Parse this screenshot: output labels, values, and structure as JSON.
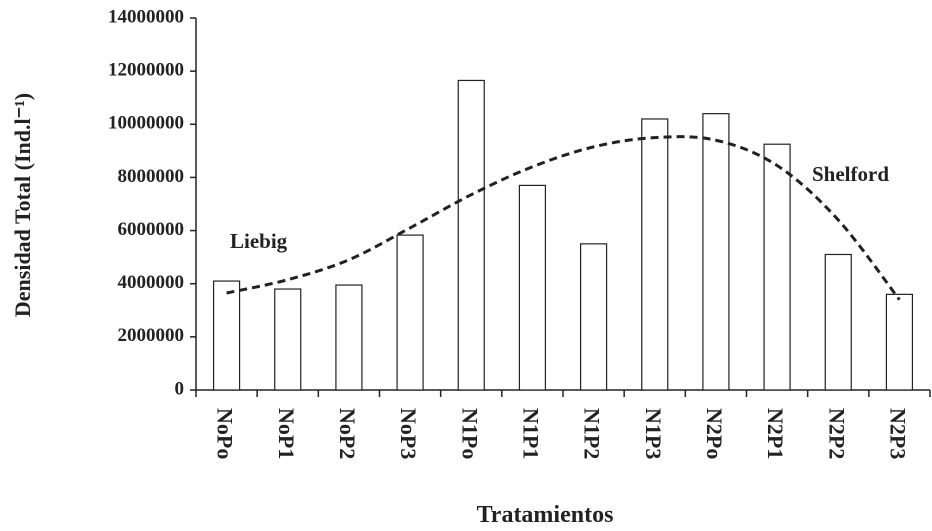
{
  "chart_data": {
    "type": "bar",
    "y_label": "Densidad Total (Ind.l⁻¹)",
    "x_label": "Tratamientos",
    "categories": [
      "NoPo",
      "NoP1",
      "NoP2",
      "NoP3",
      "N1Po",
      "N1P1",
      "N1P2",
      "N1P3",
      "N2Po",
      "N2P1",
      "N2P2",
      "N2P3"
    ],
    "values": [
      4100000,
      3800000,
      3950000,
      5830000,
      11650000,
      7700000,
      5500000,
      10200000,
      10400000,
      9250000,
      5100000,
      3600000
    ],
    "color": "#ffffff",
    "trendline": {
      "values": [
        3650000,
        4150000,
        4900000,
        6100000,
        7350000,
        8400000,
        9150000,
        9500000,
        9400000,
        8450000,
        6400000,
        3400000
      ],
      "color": "#222222",
      "dashed": true
    },
    "annotations": [
      "Liebig",
      "Shelford"
    ],
    "ylim": [
      0,
      14000000
    ],
    "yticks": [
      0,
      2000000,
      4000000,
      6000000,
      8000000,
      10000000,
      12000000,
      14000000
    ],
    "grid": false
  }
}
